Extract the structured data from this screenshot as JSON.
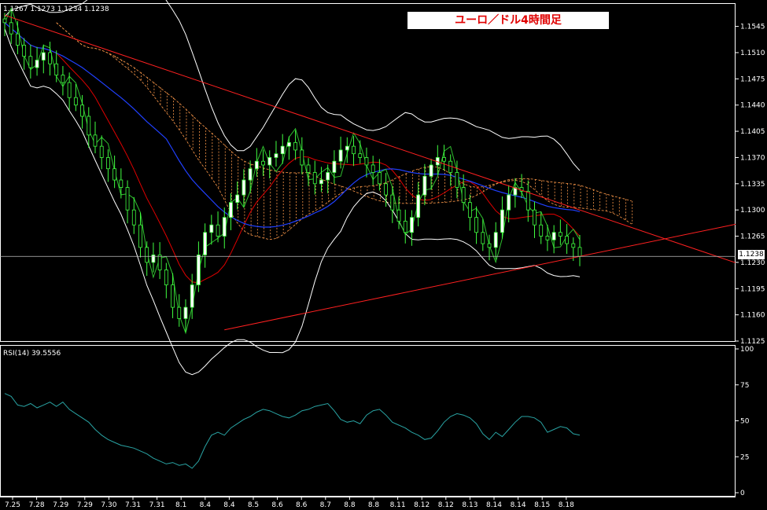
{
  "chart_data": [
    {
      "type": "candlestick",
      "title": "ユーロ／ドル4時間足",
      "ohlc_header": "1.1267 1.1273 1.1234 1.1238",
      "current_price": "1.1238",
      "y_range": [
        1.1125,
        1.1575
      ],
      "y_ticks": [
        "1.1545",
        "1.1510",
        "1.1475",
        "1.1440",
        "1.1405",
        "1.1370",
        "1.1335",
        "1.1300",
        "1.1265",
        "1.1230",
        "1.1195",
        "1.1160",
        "1.1125"
      ],
      "x_labels": [
        "7.25",
        "7.28",
        "7.29",
        "7.29",
        "7.30",
        "7.31",
        "7.31",
        "8.1",
        "8.4",
        "8.4",
        "8.5",
        "8.6",
        "8.6",
        "8.7",
        "8.8",
        "8.8",
        "8.11",
        "8.12",
        "8.12",
        "8.13",
        "8.14",
        "8.14",
        "8.15",
        "8.18"
      ],
      "closes": [
        1.155,
        1.1535,
        1.152,
        1.1505,
        1.149,
        1.15,
        1.151,
        1.1495,
        1.148,
        1.147,
        1.145,
        1.144,
        1.1425,
        1.14,
        1.1385,
        1.137,
        1.1355,
        1.134,
        1.133,
        1.13,
        1.128,
        1.125,
        1.123,
        1.124,
        1.122,
        1.12,
        1.117,
        1.1155,
        1.117,
        1.12,
        1.124,
        1.127,
        1.128,
        1.1265,
        1.129,
        1.131,
        1.132,
        1.134,
        1.1355,
        1.1365,
        1.136,
        1.137,
        1.1375,
        1.1385,
        1.139,
        1.138,
        1.136,
        1.135,
        1.1335,
        1.134,
        1.135,
        1.1365,
        1.138,
        1.1385,
        1.1375,
        1.137,
        1.136,
        1.135,
        1.1335,
        1.132,
        1.13,
        1.1285,
        1.127,
        1.129,
        1.132,
        1.1345,
        1.136,
        1.137,
        1.1365,
        1.135,
        1.133,
        1.131,
        1.129,
        1.127,
        1.1255,
        1.125,
        1.127,
        1.13,
        1.132,
        1.133,
        1.1325,
        1.13,
        1.128,
        1.1265,
        1.126,
        1.127,
        1.1265,
        1.1255,
        1.125,
        1.1238
      ],
      "trend_lines": [
        {
          "from": [
            0,
            1.156
          ],
          "to": [
            89,
            1.13
          ]
        },
        {
          "from": [
            34,
            1.114
          ],
          "to": [
            89,
            1.1238
          ]
        }
      ]
    },
    {
      "type": "line",
      "label": "RSI(14) 39.5556",
      "y_range": [
        0,
        100
      ],
      "y_ticks": [
        "100",
        "75",
        "50",
        "25",
        "0"
      ],
      "values": [
        69,
        67,
        61,
        60,
        62,
        59,
        61,
        63,
        60,
        63,
        58,
        55,
        52,
        49,
        44,
        40,
        37,
        35,
        33,
        32,
        31,
        29,
        27,
        24,
        22,
        20,
        21,
        19,
        20,
        17,
        22,
        32,
        40,
        42,
        40,
        45,
        48,
        51,
        53,
        56,
        58,
        57,
        55,
        53,
        52,
        54,
        57,
        58,
        60,
        61,
        62,
        57,
        51,
        49,
        50,
        48,
        54,
        57,
        58,
        54,
        49,
        47,
        45,
        42,
        40,
        37,
        38,
        43,
        49,
        53,
        55,
        54,
        52,
        48,
        41,
        37,
        42,
        39,
        44,
        49,
        53,
        53,
        52,
        49,
        42,
        44,
        46,
        45,
        41,
        40
      ]
    }
  ]
}
